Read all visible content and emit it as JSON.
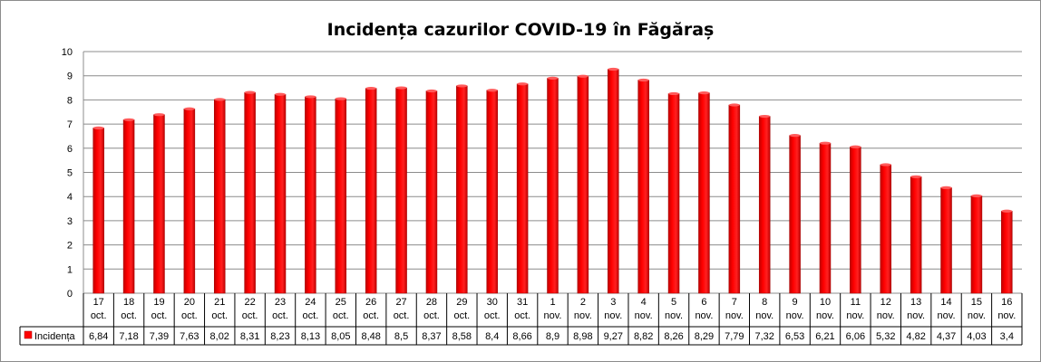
{
  "chart_data": {
    "type": "bar",
    "title": "Incidența cazurilor COVID-19 în Făgăraș",
    "categories": [
      [
        "17",
        "oct."
      ],
      [
        "18",
        "oct."
      ],
      [
        "19",
        "oct."
      ],
      [
        "20",
        "oct."
      ],
      [
        "21",
        "oct."
      ],
      [
        "22",
        "oct."
      ],
      [
        "23",
        "oct."
      ],
      [
        "24",
        "oct."
      ],
      [
        "25",
        "oct."
      ],
      [
        "26",
        "oct."
      ],
      [
        "27",
        "oct."
      ],
      [
        "28",
        "oct."
      ],
      [
        "29",
        "oct."
      ],
      [
        "30",
        "oct."
      ],
      [
        "31",
        "oct."
      ],
      [
        "1",
        "nov."
      ],
      [
        "2",
        "nov."
      ],
      [
        "3",
        "nov."
      ],
      [
        "4",
        "nov."
      ],
      [
        "5",
        "nov."
      ],
      [
        "6",
        "nov."
      ],
      [
        "7",
        "nov."
      ],
      [
        "8",
        "nov."
      ],
      [
        "9",
        "nov."
      ],
      [
        "10",
        "nov."
      ],
      [
        "11",
        "nov."
      ],
      [
        "12",
        "nov."
      ],
      [
        "13",
        "nov."
      ],
      [
        "14",
        "nov."
      ],
      [
        "15",
        "nov."
      ],
      [
        "16",
        "nov."
      ]
    ],
    "series": [
      {
        "name": "Incidența",
        "values": [
          6.84,
          7.18,
          7.39,
          7.63,
          8.02,
          8.31,
          8.23,
          8.13,
          8.05,
          8.48,
          8.5,
          8.37,
          8.58,
          8.4,
          8.66,
          8.9,
          8.98,
          9.27,
          8.82,
          8.26,
          8.29,
          7.79,
          7.32,
          6.53,
          6.21,
          6.06,
          5.32,
          4.82,
          4.37,
          4.03,
          3.4
        ],
        "labels": [
          "6,84",
          "7,18",
          "7,39",
          "7,63",
          "8,02",
          "8,31",
          "8,23",
          "8,13",
          "8,05",
          "8,48",
          "8,5",
          "8,37",
          "8,58",
          "8,4",
          "8,66",
          "8,9",
          "8,98",
          "9,27",
          "8,82",
          "8,26",
          "8,29",
          "7,79",
          "7,32",
          "6,53",
          "6,21",
          "6,06",
          "5,32",
          "4,82",
          "4,37",
          "4,03",
          "3,4"
        ]
      }
    ],
    "ylim": [
      0,
      10
    ],
    "yticks": [
      0,
      1,
      2,
      3,
      4,
      5,
      6,
      7,
      8,
      9,
      10
    ],
    "grid": true,
    "legend": "data-table-left",
    "colors": {
      "bar": "#ff0000",
      "bar_dark": "#c00000",
      "grid": "#8c8c8c",
      "frame": "#8c8c8c"
    }
  }
}
